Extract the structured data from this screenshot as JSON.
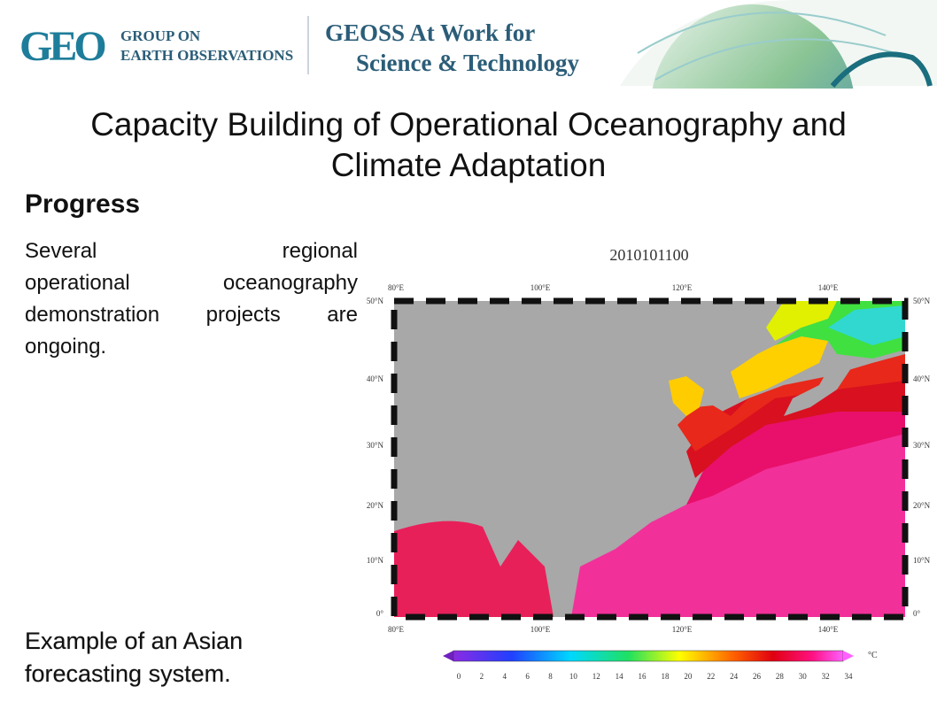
{
  "header": {
    "logo": "GEO",
    "org_line1": "GROUP ON",
    "org_line2": "EARTH OBSERVATIONS",
    "banner_line1": "GEOSS At Work for",
    "banner_line2": "Science & Technology"
  },
  "title": [
    "Capacity Building of Operational Oceanography and",
    "Climate Adaptation"
  ],
  "subtitle": "Progress",
  "body": [
    "Several regional",
    "operational oceanography",
    "demonstration projects are",
    "ongoing."
  ],
  "caption": [
    "Example of an Asian",
    "forecasting system."
  ],
  "map": {
    "title": "2010101100",
    "lon_labels": [
      "80°E",
      "100°E",
      "120°E",
      "140°E"
    ],
    "lat_labels": [
      "50°N",
      "40°N",
      "30°N",
      "20°N",
      "10°N",
      "0°"
    ],
    "colorbar_labels": [
      "0",
      "2",
      "4",
      "6",
      "8",
      "10",
      "12",
      "14",
      "16",
      "18",
      "20",
      "22",
      "24",
      "26",
      "28",
      "30",
      "32",
      "34"
    ],
    "colorbar_unit": "°C"
  }
}
